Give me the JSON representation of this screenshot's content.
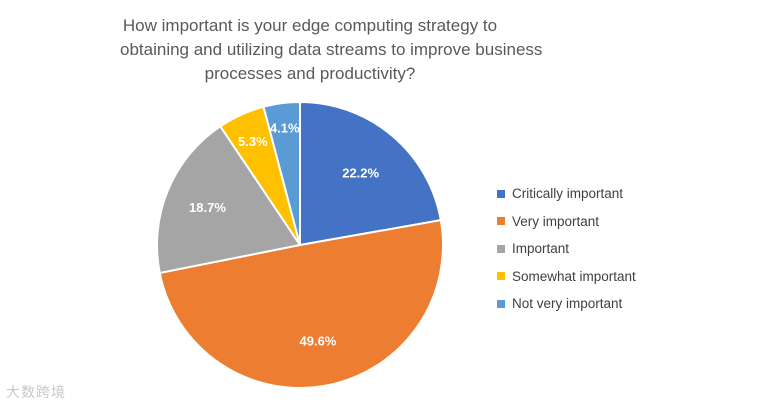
{
  "chart_data": {
    "type": "pie",
    "title_lines": [
      "How important is your edge computing strategy to",
      "obtaining and utilizing data streams to improve business",
      "processes and productivity?"
    ],
    "categories": [
      "Critically important",
      "Very important",
      "Important",
      "Somewhat important",
      "Not very important"
    ],
    "values": [
      22.2,
      49.6,
      18.7,
      5.3,
      4.1
    ],
    "labels": [
      "22.2%",
      "49.6%",
      "18.7%",
      "5.3%",
      "4.1%"
    ],
    "colors": [
      "#4472C4",
      "#ED7D31",
      "#A5A5A5",
      "#FFC000",
      "#5B9BD5"
    ],
    "legend_position": "right",
    "start_angle": "12 o'clock",
    "direction": "clockwise"
  },
  "watermark": {
    "text": "大数跨境"
  }
}
